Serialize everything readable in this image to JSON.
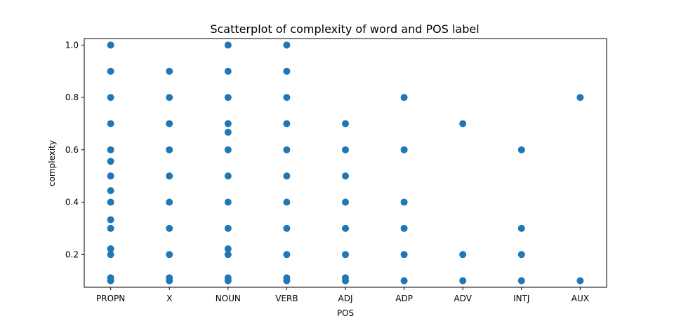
{
  "chart_data": {
    "type": "scatter",
    "title": "Scatterplot of complexity of word and POS label",
    "xlabel": "POS",
    "ylabel": "complexity",
    "categories": [
      "PROPN",
      "X",
      "NOUN",
      "VERB",
      "ADJ",
      "ADP",
      "ADV",
      "INTJ",
      "AUX"
    ],
    "yticks": [
      "0.2",
      "0.4",
      "0.6",
      "0.8",
      "1.0"
    ],
    "ylim": [
      0.075,
      1.025
    ],
    "grid": false,
    "marker_color": "#1f77b4",
    "series": [
      {
        "points": [
          {
            "x": "PROPN",
            "y": 1.0
          },
          {
            "x": "PROPN",
            "y": 0.9
          },
          {
            "x": "PROPN",
            "y": 0.8
          },
          {
            "x": "PROPN",
            "y": 0.7
          },
          {
            "x": "PROPN",
            "y": 0.6
          },
          {
            "x": "PROPN",
            "y": 0.556
          },
          {
            "x": "PROPN",
            "y": 0.5
          },
          {
            "x": "PROPN",
            "y": 0.444
          },
          {
            "x": "PROPN",
            "y": 0.4
          },
          {
            "x": "PROPN",
            "y": 0.333
          },
          {
            "x": "PROPN",
            "y": 0.3
          },
          {
            "x": "PROPN",
            "y": 0.222
          },
          {
            "x": "PROPN",
            "y": 0.2
          },
          {
            "x": "PROPN",
            "y": 0.111
          },
          {
            "x": "PROPN",
            "y": 0.1
          },
          {
            "x": "X",
            "y": 0.9
          },
          {
            "x": "X",
            "y": 0.8
          },
          {
            "x": "X",
            "y": 0.7
          },
          {
            "x": "X",
            "y": 0.6
          },
          {
            "x": "X",
            "y": 0.5
          },
          {
            "x": "X",
            "y": 0.4
          },
          {
            "x": "X",
            "y": 0.3
          },
          {
            "x": "X",
            "y": 0.2
          },
          {
            "x": "X",
            "y": 0.111
          },
          {
            "x": "X",
            "y": 0.1
          },
          {
            "x": "NOUN",
            "y": 1.0
          },
          {
            "x": "NOUN",
            "y": 0.9
          },
          {
            "x": "NOUN",
            "y": 0.8
          },
          {
            "x": "NOUN",
            "y": 0.7
          },
          {
            "x": "NOUN",
            "y": 0.667
          },
          {
            "x": "NOUN",
            "y": 0.6
          },
          {
            "x": "NOUN",
            "y": 0.5
          },
          {
            "x": "NOUN",
            "y": 0.4
          },
          {
            "x": "NOUN",
            "y": 0.3
          },
          {
            "x": "NOUN",
            "y": 0.222
          },
          {
            "x": "NOUN",
            "y": 0.2
          },
          {
            "x": "NOUN",
            "y": 0.111
          },
          {
            "x": "NOUN",
            "y": 0.1
          },
          {
            "x": "VERB",
            "y": 1.0
          },
          {
            "x": "VERB",
            "y": 0.9
          },
          {
            "x": "VERB",
            "y": 0.8
          },
          {
            "x": "VERB",
            "y": 0.7
          },
          {
            "x": "VERB",
            "y": 0.6
          },
          {
            "x": "VERB",
            "y": 0.5
          },
          {
            "x": "VERB",
            "y": 0.4
          },
          {
            "x": "VERB",
            "y": 0.3
          },
          {
            "x": "VERB",
            "y": 0.2
          },
          {
            "x": "VERB",
            "y": 0.111
          },
          {
            "x": "VERB",
            "y": 0.1
          },
          {
            "x": "ADJ",
            "y": 0.7
          },
          {
            "x": "ADJ",
            "y": 0.6
          },
          {
            "x": "ADJ",
            "y": 0.5
          },
          {
            "x": "ADJ",
            "y": 0.4
          },
          {
            "x": "ADJ",
            "y": 0.3
          },
          {
            "x": "ADJ",
            "y": 0.2
          },
          {
            "x": "ADJ",
            "y": 0.111
          },
          {
            "x": "ADJ",
            "y": 0.1
          },
          {
            "x": "ADP",
            "y": 0.8
          },
          {
            "x": "ADP",
            "y": 0.6
          },
          {
            "x": "ADP",
            "y": 0.4
          },
          {
            "x": "ADP",
            "y": 0.3
          },
          {
            "x": "ADP",
            "y": 0.2
          },
          {
            "x": "ADP",
            "y": 0.1
          },
          {
            "x": "ADV",
            "y": 0.7
          },
          {
            "x": "ADV",
            "y": 0.2
          },
          {
            "x": "ADV",
            "y": 0.1
          },
          {
            "x": "INTJ",
            "y": 0.6
          },
          {
            "x": "INTJ",
            "y": 0.3
          },
          {
            "x": "INTJ",
            "y": 0.2
          },
          {
            "x": "INTJ",
            "y": 0.1
          },
          {
            "x": "AUX",
            "y": 0.8
          },
          {
            "x": "AUX",
            "y": 0.1
          }
        ]
      }
    ]
  }
}
